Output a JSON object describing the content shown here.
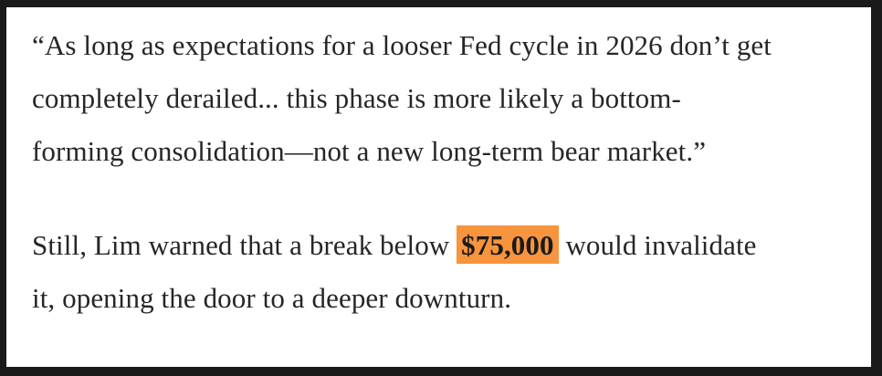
{
  "colors": {
    "frame": "#1a1a1a",
    "background": "#ffffff",
    "text": "#262626",
    "highlight_bg": "#f7943e",
    "highlight_text": "#1a1a1a"
  },
  "quote_paragraph": {
    "lines": [
      "“As long as expectations for a looser Fed cycle in 2026 don’t get",
      "completely derailed... this phase is more likely a bottom-",
      "forming consolidation—not a new long-term bear market.”"
    ]
  },
  "warning_paragraph": {
    "line1_before": "Still, Lim warned that a break below ",
    "highlight": "$75,000",
    "line1_after": " would invalidate",
    "line2": "it, opening the door to a deeper downturn."
  }
}
